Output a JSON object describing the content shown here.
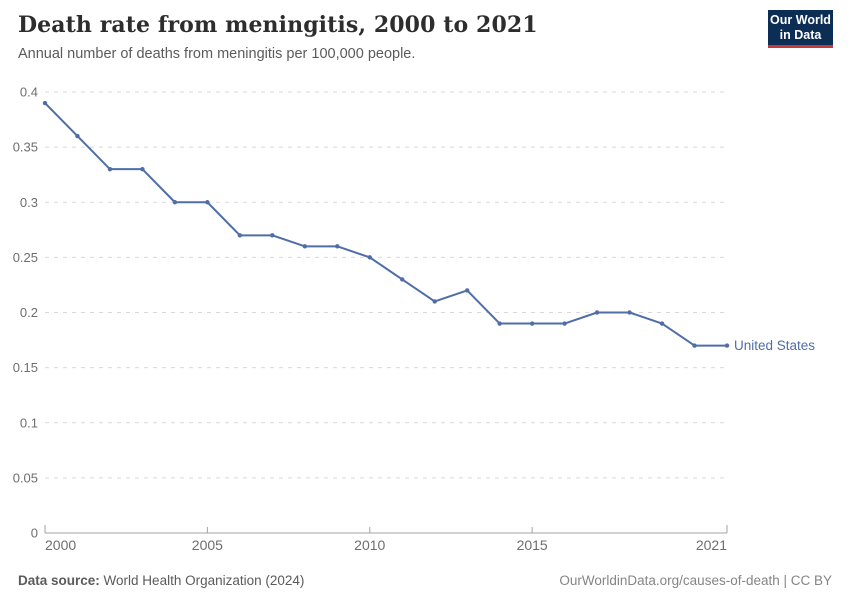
{
  "header": {
    "title": "Death rate from meningitis, 2000 to 2021",
    "subtitle": "Annual number of deaths from meningitis per 100,000 people."
  },
  "logo": {
    "line1": "Our World",
    "line2": "in Data",
    "bg_color": "#0d2e54",
    "accent_color": "#c43a3a"
  },
  "chart_data": {
    "type": "line",
    "title": "Death rate from meningitis, 2000 to 2021",
    "x": [
      2000,
      2001,
      2002,
      2003,
      2004,
      2005,
      2006,
      2007,
      2008,
      2009,
      2010,
      2011,
      2012,
      2013,
      2014,
      2015,
      2016,
      2017,
      2018,
      2019,
      2020,
      2021
    ],
    "series": [
      {
        "name": "United States",
        "color": "#4f6ea8",
        "values": [
          0.39,
          0.36,
          0.33,
          0.33,
          0.3,
          0.3,
          0.27,
          0.27,
          0.26,
          0.26,
          0.25,
          0.23,
          0.21,
          0.22,
          0.19,
          0.19,
          0.19,
          0.2,
          0.2,
          0.19,
          0.17,
          0.17
        ]
      }
    ],
    "ylim": [
      0,
      0.4
    ],
    "yticks": [
      0,
      0.05,
      0.1,
      0.15,
      0.2,
      0.25,
      0.3,
      0.35,
      0.4
    ],
    "ytick_labels": [
      "0",
      "0.05",
      "0.1",
      "0.15",
      "0.2",
      "0.25",
      "0.3",
      "0.35",
      "0.4"
    ],
    "xticks": [
      2000,
      2005,
      2010,
      2015,
      2021
    ],
    "xtick_labels": [
      "2000",
      "2005",
      "2010",
      "2015",
      "2021"
    ],
    "xlabel": "",
    "ylabel": "",
    "grid": "horizontal-dashed",
    "legend_position": "end-of-line"
  },
  "footer": {
    "source_label": "Data source:",
    "source_text": "World Health Organization (2024)",
    "credit": "OurWorldinData.org/causes-of-death | CC BY"
  }
}
